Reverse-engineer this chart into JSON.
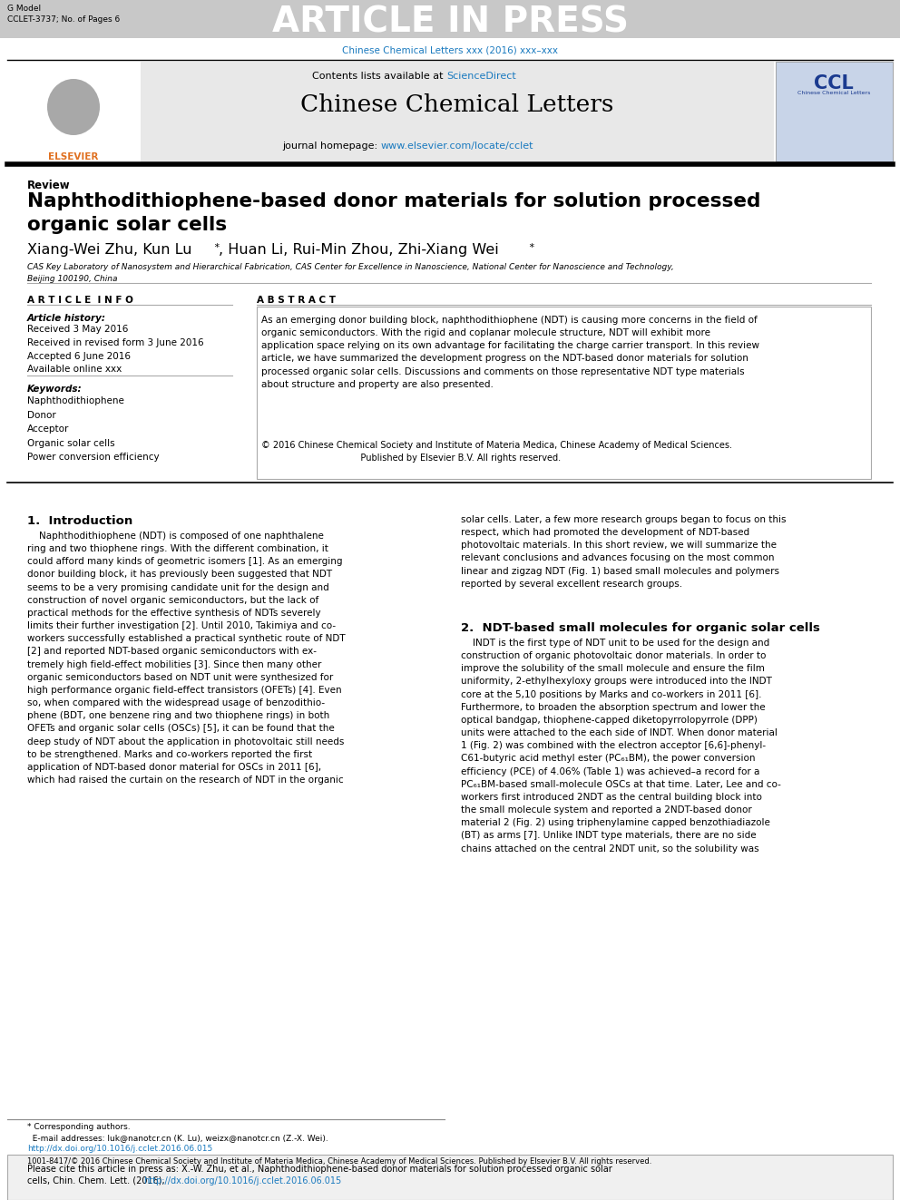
{
  "page_bg": "#ffffff",
  "header_bg": "#c8c8c8",
  "header_text": "ARTICLE IN PRESS",
  "header_small_left": "G Model\nCCLET-3737; No. of Pages 6",
  "journal_url_text": "Chinese Chemical Letters xxx (2016) xxx–xxx",
  "journal_url_color": "#1a7abf",
  "journal_header_bg": "#e8e8e8",
  "sciencedirect_color": "#1a7abf",
  "journal_name": "Chinese Chemical Letters",
  "journal_homepage_url": "www.elsevier.com/locate/cclet",
  "journal_homepage_url_color": "#1a7abf",
  "review_label": "Review",
  "paper_title": "Naphthodithiophene-based donor materials for solution processed\norganic solar cells",
  "affiliation": "CAS Key Laboratory of Nanosystem and Hierarchical Fabrication, CAS Center for Excellence in Nanoscience, National Center for Nanoscience and Technology,\nBeijing 100190, China",
  "article_info_header": "A R T I C L E  I N F O",
  "article_history_label": "Article history:",
  "article_history": "Received 3 May 2016\nReceived in revised form 3 June 2016\nAccepted 6 June 2016\nAvailable online xxx",
  "keywords_label": "Keywords:",
  "keywords": "Naphthodithiophene\nDonor\nAcceptor\nOrganic solar cells\nPower conversion efficiency",
  "abstract_header": "A B S T R A C T",
  "abstract_text": "As an emerging donor building block, naphthodithiophene (NDT) is causing more concerns in the field of\norganic semiconductors. With the rigid and coplanar molecule structure, NDT will exhibit more\napplication space relying on its own advantage for facilitating the charge carrier transport. In this review\narticle, we have summarized the development progress on the NDT-based donor materials for solution\nprocessed organic solar cells. Discussions and comments on those representative NDT type materials\nabout structure and property are also presented.",
  "copyright_text": "© 2016 Chinese Chemical Society and Institute of Materia Medica, Chinese Academy of Medical Sciences.\n                                   Published by Elsevier B.V. All rights reserved.",
  "intro_heading": "1.  Introduction",
  "intro_col1": "    Naphthodithiophene (NDT) is composed of one naphthalene\nring and two thiophene rings. With the different combination, it\ncould afford many kinds of geometric isomers [1]. As an emerging\ndonor building block, it has previously been suggested that NDT\nseems to be a very promising candidate unit for the design and\nconstruction of novel organic semiconductors, but the lack of\npractical methods for the effective synthesis of NDTs severely\nlimits their further investigation [2]. Until 2010, Takimiya and co-\nworkers successfully established a practical synthetic route of NDT\n[2] and reported NDT-based organic semiconductors with ex-\ntremely high field-effect mobilities [3]. Since then many other\norganic semiconductors based on NDT unit were synthesized for\nhigh performance organic field-effect transistors (OFETs) [4]. Even\nso, when compared with the widespread usage of benzodithio-\nphene (BDT, one benzene ring and two thiophene rings) in both\nOFETs and organic solar cells (OSCs) [5], it can be found that the\ndeep study of NDT about the application in photovoltaic still needs\nto be strengthened. Marks and co-workers reported the first\napplication of NDT-based donor material for OSCs in 2011 [6],\nwhich had raised the curtain on the research of NDT in the organic",
  "intro_col2": "solar cells. Later, a few more research groups began to focus on this\nrespect, which had promoted the development of NDT-based\nphotovoltaic materials. In this short review, we will summarize the\nrelevant conclusions and advances focusing on the most common\nlinear and zigzag NDT (Fig. 1) based small molecules and polymers\nreported by several excellent research groups.",
  "section2_heading": "2.  NDT-based small molecules for organic solar cells",
  "section2_col2": "    INDT is the first type of NDT unit to be used for the design and\nconstruction of organic photovoltaic donor materials. In order to\nimprove the solubility of the small molecule and ensure the film\nuniformity, 2-ethylhexyloxy groups were introduced into the INDT\ncore at the 5,10 positions by Marks and co-workers in 2011 [6].\nFurthermore, to broaden the absorption spectrum and lower the\noptical bandgap, thiophene-capped diketopyrrolopyrrole (DPP)\nunits were attached to the each side of INDT. When donor material\n1 (Fig. 2) was combined with the electron acceptor [6,6]-phenyl-\nC61-butyric acid methyl ester (PC₆₁BM), the power conversion\nefficiency (PCE) of 4.06% (Table 1) was achieved–a record for a\nPC₆₁BM-based small-molecule OSCs at that time. Later, Lee and co-\nworkers first introduced 2NDT as the central building block into\nthe small molecule system and reported a 2NDT-based donor\nmaterial 2 (Fig. 2) using triphenylamine capped benzothiadiazole\n(BT) as arms [7]. Unlike INDT type materials, there are no side\nchains attached on the central 2NDT unit, so the solubility was",
  "footnote_text": "* Corresponding authors.\n  E-mail addresses: luk@nanotcr.cn (K. Lu), weizx@nanotcr.cn (Z.-X. Wei).",
  "footnote_url": "http://dx.doi.org/10.1016/j.cclet.2016.06.015",
  "footnote_url_color": "#1a7abf",
  "issn_text": "1001-8417/© 2016 Chinese Chemical Society and Institute of Materia Medica, Chinese Academy of Medical Sciences. Published by Elsevier B.V. All rights reserved.",
  "cite_box_text1": "Please cite this article in press as: X.-W. Zhu, et al., Naphthodithiophene-based donor materials for solution processed organic solar",
  "cite_box_text2": "cells, Chin. Chem. Lett. (2016), ",
  "cite_box_url": "http://dx.doi.org/10.1016/j.cclet.2016.06.015",
  "cite_url_color": "#1a7abf",
  "cite_box_bg": "#f0f0f0",
  "fig1_url_color": "#1a7abf"
}
